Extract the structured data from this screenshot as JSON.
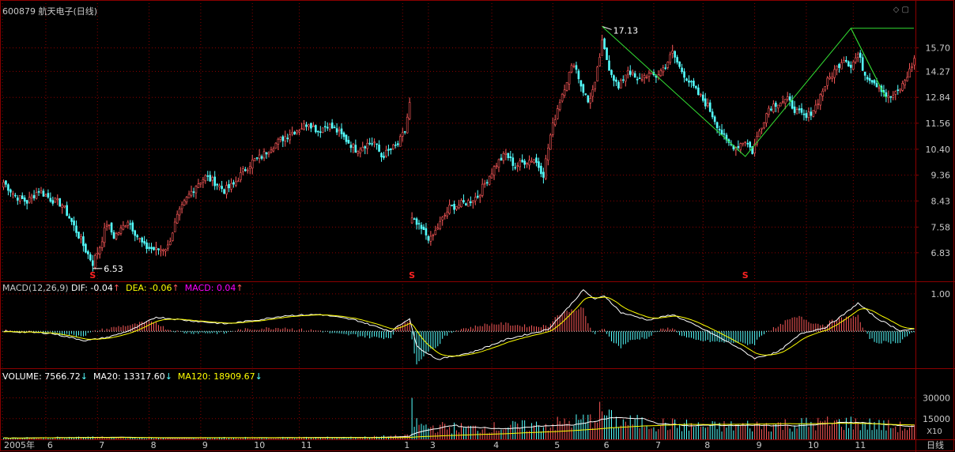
{
  "app": {
    "stock_code": "600879",
    "stock_name": "航天电子(日线)",
    "period_label": "日线",
    "scale_label": "X10"
  },
  "icons": [
    "diamond-icon",
    "restore-window-icon"
  ],
  "colors": {
    "background": "#000000",
    "up": "#ff5a5a",
    "down": "#54ffff",
    "grid": "#8b0000",
    "axis_text": "#c8c8c8",
    "white_line": "#ffffff",
    "yellow_line": "#ffff00",
    "magenta": "#ff00ff",
    "green_line": "#33dd33",
    "marker": "#ff2222"
  },
  "macd": {
    "title": "MACD(12,26,9)",
    "dif_label": "DIF: -0.04",
    "dea_label": "DEA: -0.06",
    "macd_label": "MACD: 0.04",
    "up_arrow": "↑"
  },
  "volume": {
    "vol_label": "VOLUME: 7566.72",
    "ma20_label": "MA20: 13317.60",
    "ma120_label": "MA120: 18909.67",
    "down_arrow": "↓"
  },
  "chart_data": {
    "type": "candlestick",
    "price_axis_ticks": [
      "15.70",
      "14.27",
      "12.84",
      "11.56",
      "10.40",
      "9.36",
      "8.43",
      "7.58",
      "6.83"
    ],
    "price_log_scale": true,
    "price_range": [
      6.3,
      18.0
    ],
    "macd_axis_ticks": [
      "1.00"
    ],
    "macd_range": [
      -0.9,
      1.25
    ],
    "volume_axis_ticks": [
      "30000",
      "15000"
    ],
    "volume_range": [
      0,
      40000
    ],
    "x_axis_labels": [
      "2005年",
      "6",
      "7",
      "8",
      "9",
      "10",
      "11",
      "1",
      "3",
      "4",
      "5",
      "6",
      "7",
      "8",
      "9",
      "10",
      "11"
    ],
    "annotations": [
      {
        "label": "6.53",
        "type": "low"
      },
      {
        "label": "17.13",
        "type": "high"
      }
    ],
    "signal_markers": [
      "S",
      "S",
      "S"
    ],
    "close_anchors": [
      [
        0,
        9.1
      ],
      [
        5,
        8.6
      ],
      [
        10,
        8.4
      ],
      [
        15,
        8.8
      ],
      [
        20,
        8.5
      ],
      [
        25,
        8.3
      ],
      [
        30,
        7.6
      ],
      [
        35,
        6.9
      ],
      [
        38,
        6.55
      ],
      [
        41,
        7.0
      ],
      [
        44,
        7.7
      ],
      [
        47,
        7.3
      ],
      [
        50,
        7.5
      ],
      [
        53,
        7.8
      ],
      [
        57,
        7.3
      ],
      [
        60,
        7.0
      ],
      [
        65,
        6.9
      ],
      [
        70,
        7.0
      ],
      [
        74,
        7.9
      ],
      [
        78,
        8.5
      ],
      [
        82,
        9.0
      ],
      [
        86,
        9.3
      ],
      [
        90,
        9.1
      ],
      [
        94,
        8.8
      ],
      [
        98,
        9.0
      ],
      [
        102,
        9.5
      ],
      [
        106,
        9.9
      ],
      [
        110,
        10.1
      ],
      [
        114,
        10.5
      ],
      [
        118,
        10.8
      ],
      [
        122,
        11.1
      ],
      [
        126,
        11.3
      ],
      [
        130,
        11.6
      ],
      [
        134,
        11.2
      ],
      [
        138,
        11.5
      ],
      [
        142,
        11.2
      ],
      [
        146,
        10.8
      ],
      [
        150,
        10.4
      ],
      [
        154,
        10.6
      ],
      [
        158,
        10.7
      ],
      [
        161,
        10.1
      ],
      [
        164,
        10.3
      ],
      [
        168,
        10.6
      ],
      [
        171,
        11.2
      ],
      [
        173,
        12.5
      ],
      [
        174,
        7.8
      ],
      [
        178,
        7.5
      ],
      [
        182,
        7.2
      ],
      [
        186,
        7.7
      ],
      [
        190,
        8.2
      ],
      [
        194,
        8.3
      ],
      [
        198,
        8.4
      ],
      [
        202,
        8.6
      ],
      [
        206,
        9.2
      ],
      [
        210,
        9.8
      ],
      [
        214,
        10.2
      ],
      [
        218,
        9.7
      ],
      [
        222,
        9.9
      ],
      [
        226,
        10.0
      ],
      [
        230,
        9.4
      ],
      [
        233,
        11.0
      ],
      [
        236,
        12.3
      ],
      [
        240,
        13.8
      ],
      [
        243,
        14.8
      ],
      [
        246,
        13.5
      ],
      [
        249,
        12.6
      ],
      [
        252,
        13.5
      ],
      [
        255,
        16.0
      ],
      [
        258,
        14.5
      ],
      [
        262,
        13.3
      ],
      [
        266,
        14.4
      ],
      [
        270,
        13.7
      ],
      [
        274,
        14.1
      ],
      [
        278,
        14.0
      ],
      [
        282,
        14.6
      ],
      [
        285,
        15.4
      ],
      [
        288,
        14.5
      ],
      [
        292,
        13.7
      ],
      [
        296,
        13.0
      ],
      [
        300,
        12.4
      ],
      [
        304,
        11.5
      ],
      [
        308,
        10.7
      ],
      [
        312,
        10.5
      ],
      [
        316,
        10.8
      ],
      [
        319,
        10.3
      ],
      [
        322,
        11.2
      ],
      [
        326,
        12.3
      ],
      [
        330,
        12.6
      ],
      [
        334,
        12.7
      ],
      [
        338,
        12.1
      ],
      [
        342,
        11.8
      ],
      [
        346,
        12.4
      ],
      [
        350,
        13.5
      ],
      [
        354,
        14.3
      ],
      [
        358,
        15.1
      ],
      [
        361,
        14.6
      ],
      [
        364,
        15.3
      ],
      [
        367,
        14.1
      ],
      [
        370,
        13.8
      ],
      [
        374,
        13.3
      ],
      [
        377,
        12.8
      ],
      [
        380,
        13.0
      ],
      [
        383,
        13.5
      ],
      [
        386,
        14.3
      ],
      [
        388,
        15.0
      ]
    ],
    "volume_anchors": [
      [
        0,
        1000
      ],
      [
        40,
        1600
      ],
      [
        60,
        900
      ],
      [
        100,
        1200
      ],
      [
        150,
        1400
      ],
      [
        173,
        2500
      ],
      [
        174,
        30000
      ],
      [
        175,
        12000
      ],
      [
        180,
        9000
      ],
      [
        200,
        8000
      ],
      [
        230,
        10000
      ],
      [
        250,
        14000
      ],
      [
        255,
        20000
      ],
      [
        260,
        13000
      ],
      [
        300,
        9000
      ],
      [
        340,
        11000
      ],
      [
        360,
        12000
      ],
      [
        388,
        8000
      ]
    ],
    "macd_anchors": [
      [
        0,
        0.0
      ],
      [
        20,
        -0.05
      ],
      [
        35,
        -0.25
      ],
      [
        45,
        -0.15
      ],
      [
        55,
        0.05
      ],
      [
        65,
        0.38
      ],
      [
        80,
        0.28
      ],
      [
        95,
        0.2
      ],
      [
        110,
        0.32
      ],
      [
        120,
        0.42
      ],
      [
        135,
        0.45
      ],
      [
        150,
        0.3
      ],
      [
        165,
        0.0
      ],
      [
        173,
        0.35
      ],
      [
        176,
        -0.4
      ],
      [
        185,
        -0.75
      ],
      [
        200,
        -0.55
      ],
      [
        215,
        -0.2
      ],
      [
        232,
        0.05
      ],
      [
        240,
        0.6
      ],
      [
        247,
        1.1
      ],
      [
        252,
        0.85
      ],
      [
        256,
        0.95
      ],
      [
        263,
        0.5
      ],
      [
        275,
        0.3
      ],
      [
        285,
        0.45
      ],
      [
        300,
        0.0
      ],
      [
        312,
        -0.4
      ],
      [
        320,
        -0.72
      ],
      [
        330,
        -0.55
      ],
      [
        340,
        -0.05
      ],
      [
        350,
        0.1
      ],
      [
        358,
        0.45
      ],
      [
        364,
        0.75
      ],
      [
        372,
        0.35
      ],
      [
        382,
        0.02
      ],
      [
        388,
        0.05
      ]
    ]
  }
}
